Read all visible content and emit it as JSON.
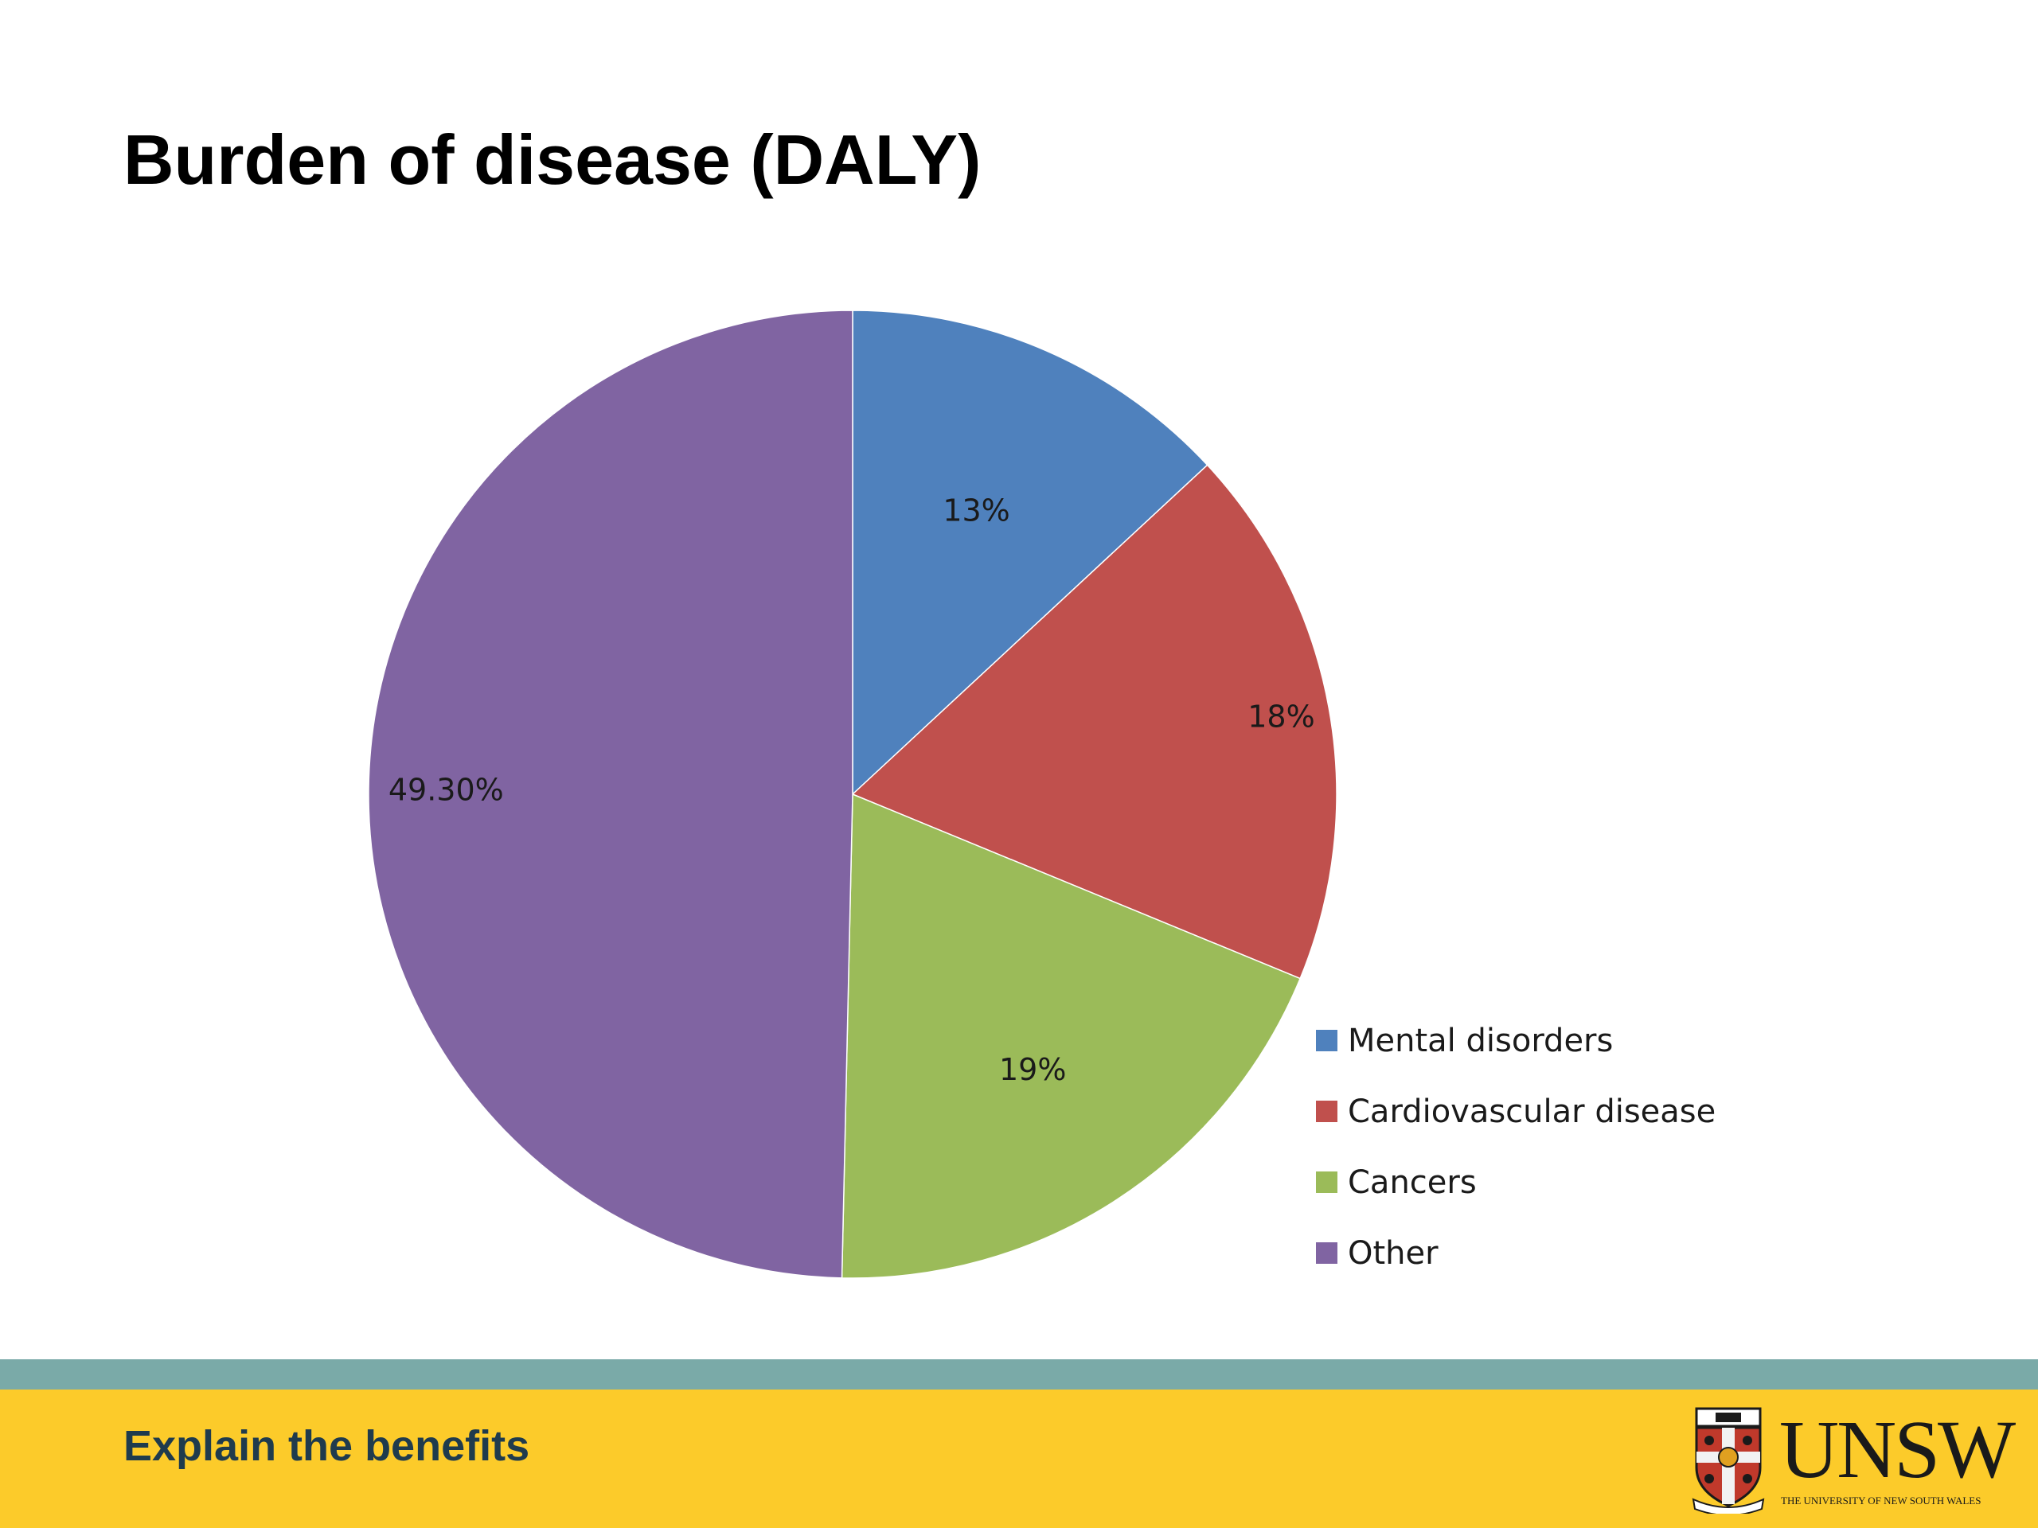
{
  "slide": {
    "title": "Burden of disease (DALY)",
    "footer_text": "Explain the benefits",
    "logo": {
      "word": "UNSW",
      "subtitle": "THE UNIVERSITY OF NEW SOUTH WALES",
      "crest_motto": "SCIENTIA MANU ET MENTE"
    }
  },
  "colors": {
    "mental": "#4f81bd",
    "cardio": "#c0504d",
    "cancers": "#9bbb59",
    "other": "#8064a2",
    "footer_bar": "#fccb2a",
    "footer_stripe": "#7aaaa8",
    "footer_text": "#1f3b4d"
  },
  "chart_data": {
    "type": "pie",
    "title": "",
    "categories": [
      "Mental disorders",
      "Cardiovascular disease",
      "Cancers",
      "Other"
    ],
    "values": [
      13,
      18,
      19,
      49.3
    ],
    "data_labels": [
      "13%",
      "18%",
      "19%",
      "49.30%"
    ],
    "colors": [
      "#4f81bd",
      "#c0504d",
      "#9bbb59",
      "#8064a2"
    ],
    "start": "12 o'clock",
    "direction": "clockwise",
    "legend_position": "bottom-right"
  }
}
